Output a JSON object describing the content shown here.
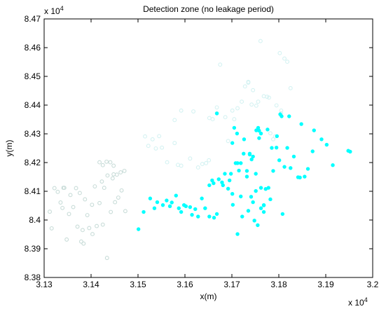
{
  "chart_data": {
    "type": "scatter",
    "title": "Detection zone (no leakage period)",
    "xlabel": "x(m)",
    "ylabel": "y(m)",
    "x_exponent_label": "x 10^4",
    "y_exponent_label": "x 10^4",
    "xlim": [
      3.13,
      3.2
    ],
    "ylim": [
      8.38,
      8.47
    ],
    "xticks": [
      "3.13",
      "3.14",
      "3.15",
      "3.16",
      "3.17",
      "3.18",
      "3.19",
      "3.2"
    ],
    "yticks": [
      "8.38",
      "8.39",
      "8.4",
      "8.41",
      "8.42",
      "8.43",
      "8.44",
      "8.45",
      "8.46",
      "8.47"
    ],
    "grid": false,
    "legend": "none",
    "series": [
      {
        "style": "light-grey-green open circles",
        "color": "#c8dcd8",
        "x": [
          3.1312,
          3.1316,
          3.1322,
          3.1329,
          3.1335,
          3.1341,
          3.1339,
          3.1343,
          3.1348,
          3.1353,
          3.1356,
          3.1362,
          3.1368,
          3.1371,
          3.1376,
          3.1382,
          3.1387,
          3.1392,
          3.1379,
          3.1384,
          3.1402,
          3.1408,
          3.1412,
          3.1418,
          3.1425,
          3.1433,
          3.1441,
          3.1448,
          3.1455,
          3.1463,
          3.1471,
          3.1423,
          3.1428,
          3.1435,
          3.1442,
          3.1446,
          3.1451,
          3.1458,
          3.1465,
          3.1473,
          3.1425,
          3.1434,
          3.1448,
          3.1403,
          3.1396,
          3.1418
        ],
        "y": [
          8.4029,
          8.3971,
          8.4111,
          8.4098,
          8.4061,
          8.4112,
          8.4042,
          8.4112,
          8.3932,
          8.4021,
          8.4087,
          8.4045,
          8.4111,
          8.3977,
          8.4094,
          8.3965,
          8.4072,
          8.4017,
          8.3925,
          8.3918,
          8.4053,
          8.4117,
          8.3979,
          8.4059,
          8.4191,
          8.4203,
          8.4201,
          8.4159,
          8.4158,
          8.4166,
          8.4171,
          8.4134,
          8.4112,
          8.4155,
          8.4028,
          8.4145,
          8.4062,
          8.4078,
          8.4103,
          8.4031,
          8.3984,
          8.3868,
          8.4189,
          8.3951,
          8.3972,
          8.4201
        ]
      },
      {
        "style": "very light cyan open circles",
        "color": "#d4f2f2",
        "x": [
          3.1515,
          3.1522,
          3.1531,
          3.1538,
          3.1545,
          3.1551,
          3.1562,
          3.1578,
          3.1585,
          3.1592,
          3.1611,
          3.1628,
          3.1637,
          3.1645,
          3.1651,
          3.1659,
          3.1668,
          3.1675,
          3.1686,
          3.1692,
          3.1705,
          3.1712,
          3.1721,
          3.1728,
          3.1735,
          3.1745,
          3.1752,
          3.1761,
          3.1768,
          3.1775,
          3.1782,
          3.1788,
          3.1795,
          3.1802,
          3.1805,
          3.1812,
          3.1818,
          3.1825,
          3.1578,
          3.1592,
          3.1618,
          3.1652,
          3.1668,
          3.1701,
          3.1735,
          3.1742,
          3.1756,
          3.1779,
          3.1792,
          3.1805
        ],
        "y": [
          8.4291,
          8.4258,
          8.4281,
          8.4249,
          8.4292,
          8.4252,
          8.4201,
          8.4268,
          8.4192,
          8.4189,
          8.4214,
          8.4183,
          8.4195,
          8.4198,
          8.4208,
          8.4351,
          8.4392,
          8.4541,
          8.4358,
          8.4275,
          8.4351,
          8.4389,
          8.4412,
          8.4465,
          8.4481,
          8.4452,
          8.4398,
          8.4623,
          8.4431,
          8.4429,
          8.4302,
          8.4281,
          8.4399,
          8.4581,
          8.4372,
          8.4562,
          8.4551,
          8.4459,
          8.4348,
          8.4381,
          8.4378,
          8.4355,
          8.4372,
          8.4381,
          8.4478,
          8.4402,
          8.4412,
          8.4426,
          8.4291,
          8.4381
        ]
      },
      {
        "style": "cyan filled circles",
        "color": "#00ffff",
        "x": [
          3.1501,
          3.1512,
          3.1526,
          3.1535,
          3.1541,
          3.1553,
          3.1561,
          3.1568,
          3.1572,
          3.1581,
          3.1587,
          3.1592,
          3.1598,
          3.1602,
          3.1611,
          3.1615,
          3.1622,
          3.1628,
          3.1636,
          3.1643,
          3.1652,
          3.1658,
          3.1662,
          3.1668,
          3.1672,
          3.1679,
          3.1685,
          3.1692,
          3.1698,
          3.1702,
          3.1708,
          3.1715,
          3.1719,
          3.1726,
          3.1732,
          3.1738,
          3.1745,
          3.1751,
          3.1758,
          3.1762,
          3.1768,
          3.1772,
          3.1778,
          3.1782,
          3.1788,
          3.1795,
          3.1801,
          3.1806,
          3.1812,
          3.1818,
          3.1825,
          3.1832,
          3.1841,
          3.1848,
          3.1855,
          3.1862,
          3.1875,
          3.1891,
          3.1902,
          3.1915,
          3.1948,
          3.1952,
          3.1668,
          3.1705,
          3.1711,
          3.1725,
          3.1732,
          3.1745,
          3.1752,
          3.1758,
          3.1762,
          3.1768,
          3.1776,
          3.1785,
          3.1796,
          3.1803,
          3.1822,
          3.1845,
          3.1872,
          3.1808,
          3.1712,
          3.1722,
          3.1735,
          3.1741,
          3.1748,
          3.1755,
          3.1762,
          3.1701,
          3.1681,
          3.1652,
          3.1661,
          3.1695,
          3.1719,
          3.1738,
          3.1742,
          3.1756,
          3.1751,
          3.1768,
          3.1701,
          3.1712
        ],
        "y": [
          8.3968,
          8.4028,
          8.4075,
          8.4041,
          8.4062,
          8.4052,
          8.4068,
          8.4048,
          8.4061,
          8.4085,
          8.4041,
          8.4028,
          8.4052,
          8.4048,
          8.4045,
          8.4018,
          8.4038,
          8.4012,
          8.4075,
          8.4041,
          8.4121,
          8.4138,
          8.4008,
          8.4021,
          8.4142,
          8.4131,
          8.4161,
          8.4109,
          8.4161,
          8.4053,
          8.4198,
          8.4172,
          8.4082,
          8.4281,
          8.4171,
          8.4228,
          8.4062,
          8.4161,
          8.4285,
          8.4301,
          8.4028,
          8.4108,
          8.4112,
          8.4072,
          8.4171,
          8.4252,
          8.4208,
          8.4361,
          8.4185,
          8.4251,
          8.4181,
          8.4221,
          8.4149,
          8.4334,
          8.4151,
          8.4178,
          8.4312,
          8.4281,
          8.4262,
          8.4191,
          8.4241,
          8.4238,
          8.4371,
          8.4321,
          8.4301,
          8.4231,
          8.4151,
          8.4221,
          8.4312,
          8.4311,
          8.4041,
          8.4052,
          8.4315,
          8.4251,
          8.4292,
          8.4368,
          8.4361,
          8.4148,
          8.4239,
          8.4021,
          8.3951,
          8.4012,
          8.4032,
          8.4081,
          8.3998,
          8.3982,
          8.4112,
          8.4091,
          8.4121,
          8.4012,
          8.4128,
          8.4138,
          8.4198,
          8.4231,
          8.4211,
          8.4321,
          8.4101,
          8.4051,
          8.4268,
          8.4198
        ]
      }
    ]
  }
}
